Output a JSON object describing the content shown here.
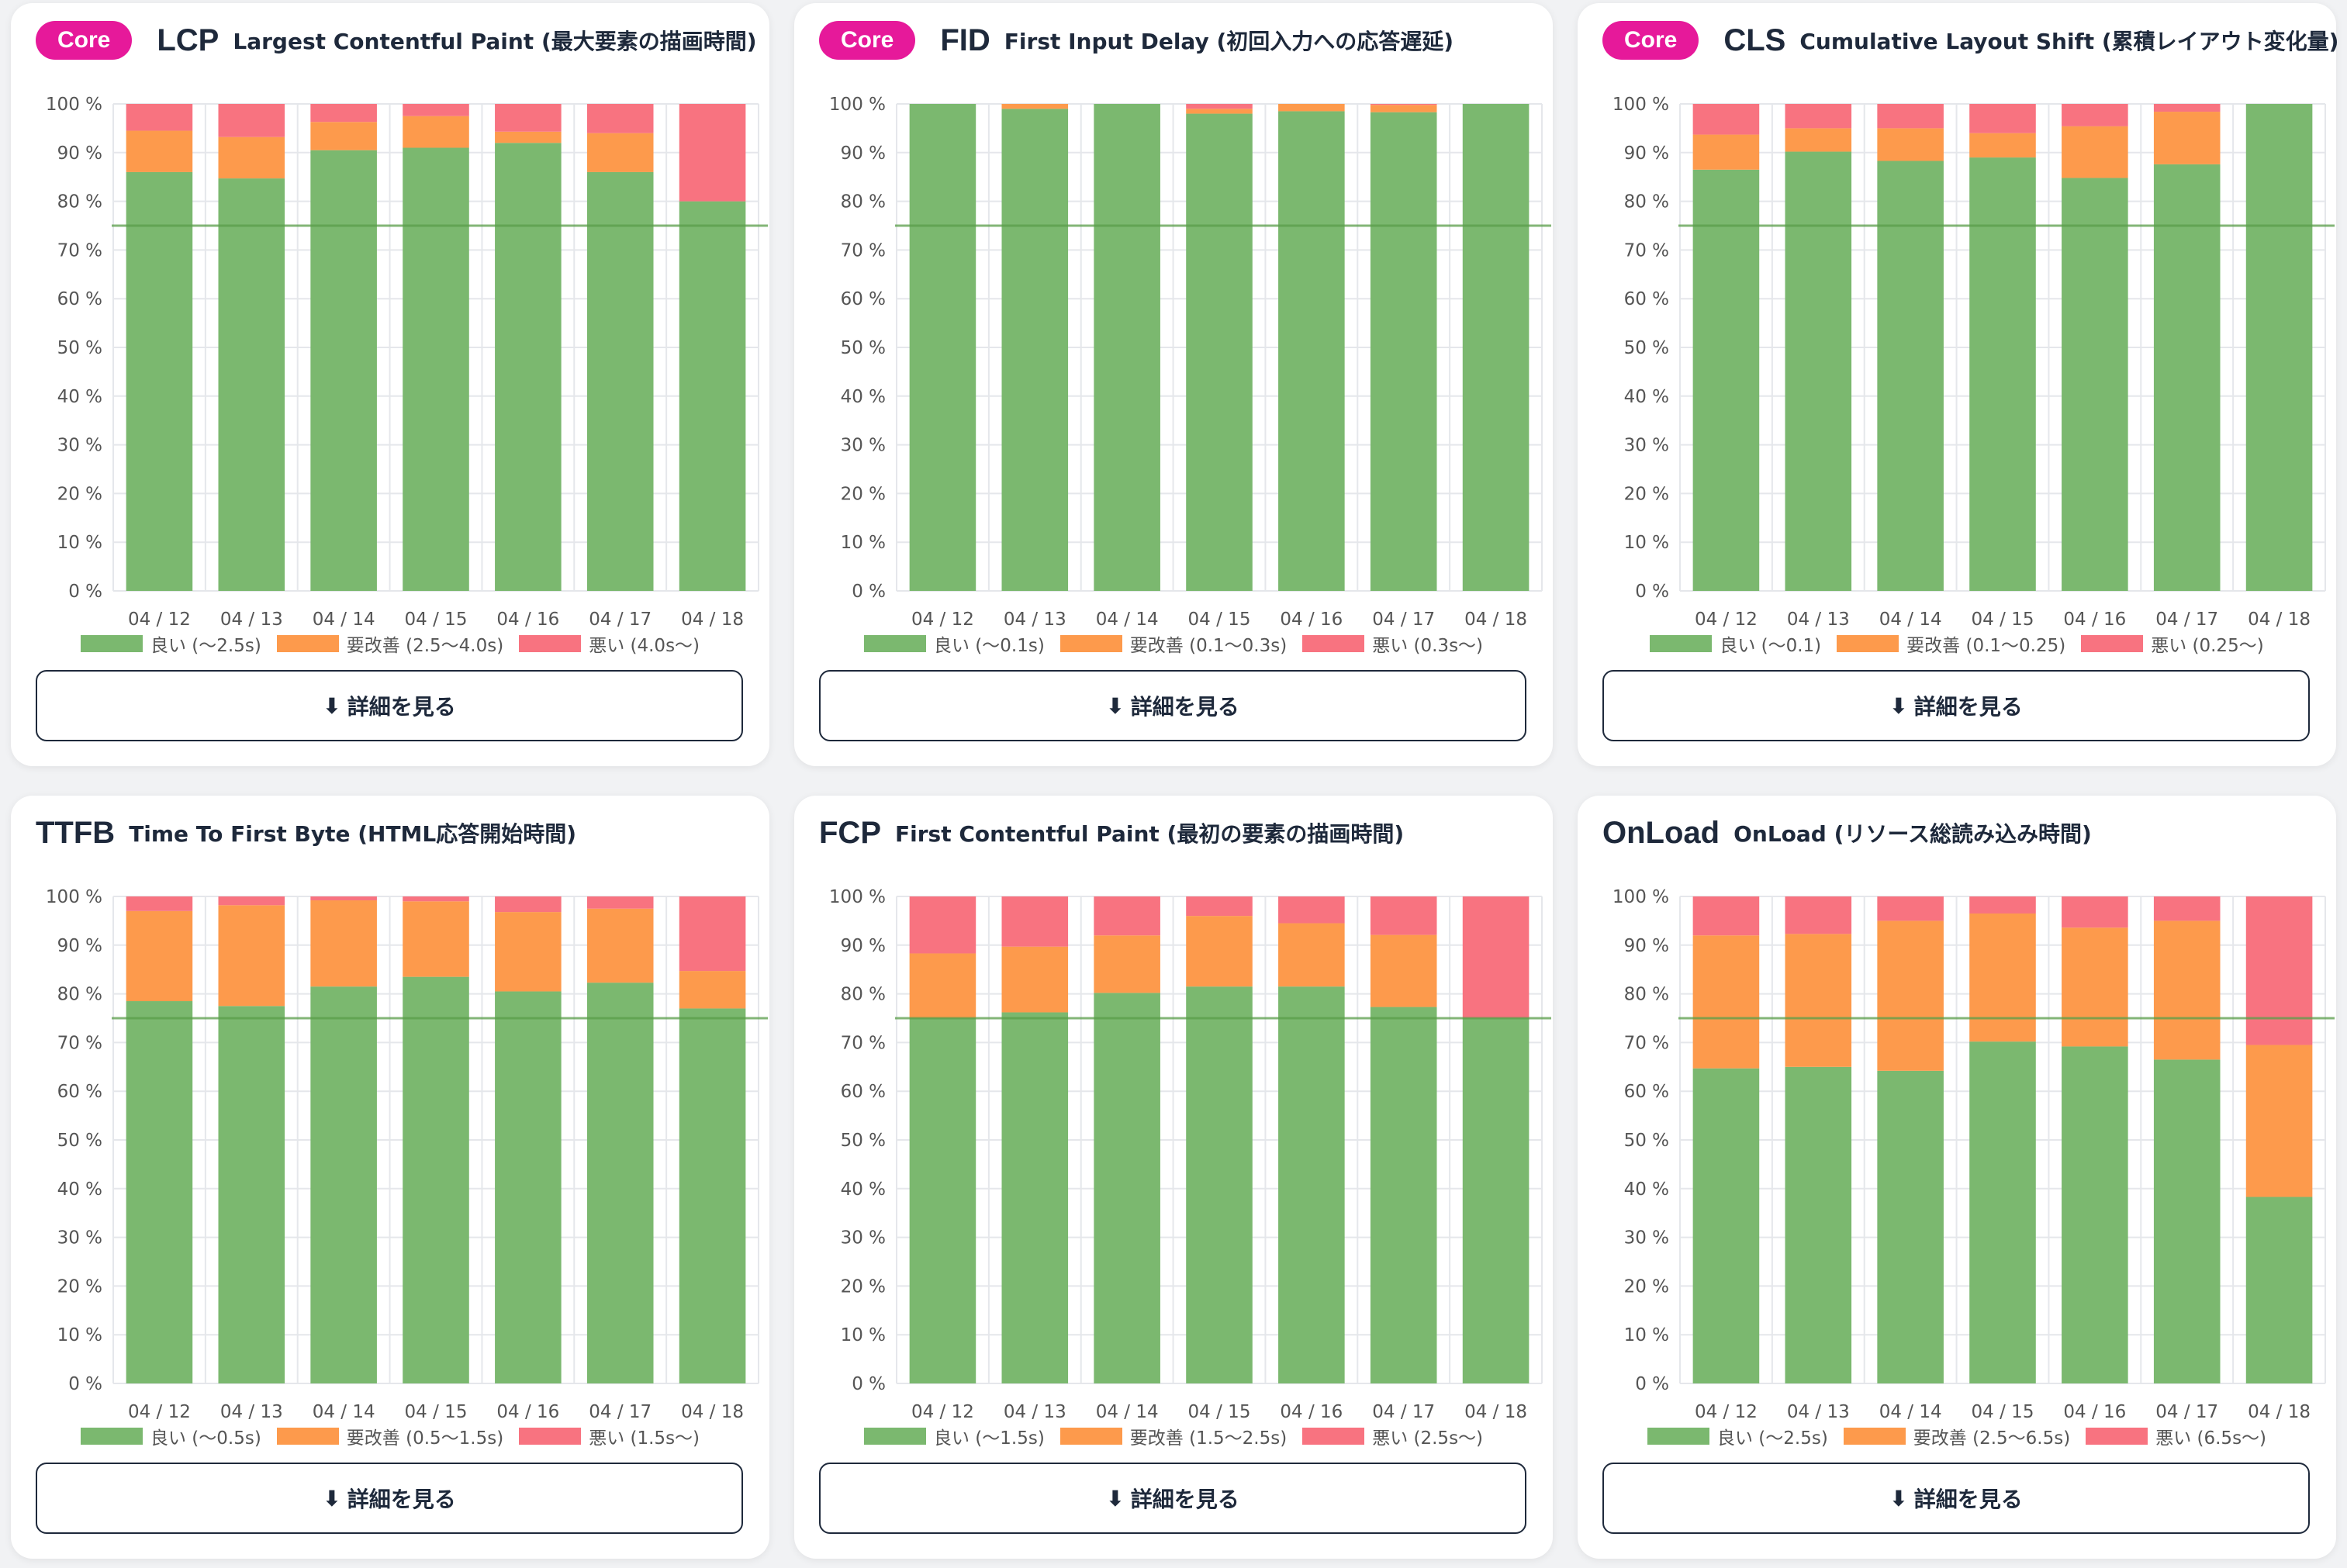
{
  "button_label": "詳細を見る",
  "button_icon": "⬇",
  "colors": {
    "good": "#7bb86f",
    "improve": "#fd9a4c",
    "poor": "#f87380",
    "badge": "#e6199a",
    "threshold": "#5a9e4a"
  },
  "chart_data": [
    {
      "type": "bar",
      "stacked": true,
      "badge": "Core",
      "abbr": "LCP",
      "title": "Largest Contentful Paint (最大要素の描画時間)",
      "categories": [
        "04 / 12",
        "04 / 13",
        "04 / 14",
        "04 / 15",
        "04 / 16",
        "04 / 17",
        "04 / 18"
      ],
      "series": [
        {
          "name": "良い (〜2.5s)",
          "key": "good",
          "values": [
            86,
            84.7,
            90.5,
            91,
            92,
            86,
            80
          ]
        },
        {
          "name": "要改善 (2.5〜4.0s)",
          "key": "improve",
          "values": [
            8.5,
            8.5,
            5.8,
            6.5,
            2.3,
            8,
            0
          ]
        },
        {
          "name": "悪い (4.0s〜)",
          "key": "poor",
          "values": [
            5.5,
            6.8,
            3.7,
            2.5,
            5.7,
            6,
            20
          ]
        }
      ],
      "yticks": [
        "0 %",
        "10 %",
        "20 %",
        "30 %",
        "40 %",
        "50 %",
        "60 %",
        "70 %",
        "80 %",
        "90 %",
        "100 %"
      ],
      "ylim": [
        0,
        100
      ],
      "threshold": 75
    },
    {
      "type": "bar",
      "stacked": true,
      "badge": "Core",
      "abbr": "FID",
      "title": "First Input Delay (初回入力への応答遅延)",
      "categories": [
        "04 / 12",
        "04 / 13",
        "04 / 14",
        "04 / 15",
        "04 / 16",
        "04 / 17",
        "04 / 18"
      ],
      "series": [
        {
          "name": "良い (〜0.1s)",
          "key": "good",
          "values": [
            100,
            99,
            100,
            98,
            98.5,
            98.3,
            100
          ]
        },
        {
          "name": "要改善 (0.1〜0.3s)",
          "key": "improve",
          "values": [
            0,
            1,
            0,
            1,
            1.5,
            1.5,
            0
          ]
        },
        {
          "name": "悪い (0.3s〜)",
          "key": "poor",
          "values": [
            0,
            0,
            0,
            1,
            0,
            0.2,
            0
          ]
        }
      ],
      "yticks": [
        "0 %",
        "10 %",
        "20 %",
        "30 %",
        "40 %",
        "50 %",
        "60 %",
        "70 %",
        "80 %",
        "90 %",
        "100 %"
      ],
      "ylim": [
        0,
        100
      ],
      "threshold": 75
    },
    {
      "type": "bar",
      "stacked": true,
      "badge": "Core",
      "abbr": "CLS",
      "title": "Cumulative Layout Shift (累積レイアウト変化量)",
      "categories": [
        "04 / 12",
        "04 / 13",
        "04 / 14",
        "04 / 15",
        "04 / 16",
        "04 / 17",
        "04 / 18"
      ],
      "series": [
        {
          "name": "良い (〜0.1)",
          "key": "good",
          "values": [
            86.5,
            90.2,
            88.3,
            89,
            84.8,
            87.6,
            100
          ]
        },
        {
          "name": "要改善 (0.1〜0.25)",
          "key": "improve",
          "values": [
            7.2,
            4.8,
            6.7,
            5,
            10.6,
            10.8,
            0
          ]
        },
        {
          "name": "悪い (0.25〜)",
          "key": "poor",
          "values": [
            6.3,
            5,
            5,
            6,
            4.6,
            1.6,
            0
          ]
        }
      ],
      "yticks": [
        "0 %",
        "10 %",
        "20 %",
        "30 %",
        "40 %",
        "50 %",
        "60 %",
        "70 %",
        "80 %",
        "90 %",
        "100 %"
      ],
      "ylim": [
        0,
        100
      ],
      "threshold": 75
    },
    {
      "type": "bar",
      "stacked": true,
      "badge": "",
      "abbr": "TTFB",
      "title": "Time To First Byte (HTML応答開始時間)",
      "categories": [
        "04 / 12",
        "04 / 13",
        "04 / 14",
        "04 / 15",
        "04 / 16",
        "04 / 17",
        "04 / 18"
      ],
      "series": [
        {
          "name": "良い (〜0.5s)",
          "key": "good",
          "values": [
            78.5,
            77.5,
            81.5,
            83.5,
            80.5,
            82.3,
            77
          ]
        },
        {
          "name": "要改善 (0.5〜1.5s)",
          "key": "improve",
          "values": [
            18.5,
            20.7,
            17.7,
            15.5,
            16.3,
            15.2,
            7.7
          ]
        },
        {
          "name": "悪い (1.5s〜)",
          "key": "poor",
          "values": [
            3,
            1.8,
            0.8,
            1,
            3.2,
            2.5,
            15.3
          ]
        }
      ],
      "yticks": [
        "0 %",
        "10 %",
        "20 %",
        "30 %",
        "40 %",
        "50 %",
        "60 %",
        "70 %",
        "80 %",
        "90 %",
        "100 %"
      ],
      "ylim": [
        0,
        100
      ],
      "threshold": 75
    },
    {
      "type": "bar",
      "stacked": true,
      "badge": "",
      "abbr": "FCP",
      "title": "First Contentful Paint (最初の要素の描画時間)",
      "categories": [
        "04 / 12",
        "04 / 13",
        "04 / 14",
        "04 / 15",
        "04 / 16",
        "04 / 17",
        "04 / 18"
      ],
      "series": [
        {
          "name": "良い (〜1.5s)",
          "key": "good",
          "values": [
            75,
            76.2,
            80.2,
            81.5,
            81.5,
            77.3,
            75
          ]
        },
        {
          "name": "要改善 (1.5〜2.5s)",
          "key": "improve",
          "values": [
            13.3,
            13.5,
            11.8,
            14.5,
            13,
            14.8,
            0
          ]
        },
        {
          "name": "悪い (2.5s〜)",
          "key": "poor",
          "values": [
            11.7,
            10.3,
            8,
            4,
            5.5,
            7.9,
            25
          ]
        }
      ],
      "yticks": [
        "0 %",
        "10 %",
        "20 %",
        "30 %",
        "40 %",
        "50 %",
        "60 %",
        "70 %",
        "80 %",
        "90 %",
        "100 %"
      ],
      "ylim": [
        0,
        100
      ],
      "threshold": 75
    },
    {
      "type": "bar",
      "stacked": true,
      "badge": "",
      "abbr": "OnLoad",
      "title": "OnLoad (リソース総読み込み時間)",
      "categories": [
        "04 / 12",
        "04 / 13",
        "04 / 14",
        "04 / 15",
        "04 / 16",
        "04 / 17",
        "04 / 18"
      ],
      "series": [
        {
          "name": "良い (〜2.5s)",
          "key": "good",
          "values": [
            64.7,
            65,
            64.2,
            70.2,
            69.2,
            66.5,
            38.3
          ]
        },
        {
          "name": "要改善 (2.5〜6.5s)",
          "key": "improve",
          "values": [
            27.3,
            27.3,
            30.8,
            26.3,
            24.4,
            28.5,
            31.2
          ]
        },
        {
          "name": "悪い (6.5s〜)",
          "key": "poor",
          "values": [
            8,
            7.7,
            5,
            3.5,
            6.4,
            5,
            30.5
          ]
        }
      ],
      "yticks": [
        "0 %",
        "10 %",
        "20 %",
        "30 %",
        "40 %",
        "50 %",
        "60 %",
        "70 %",
        "80 %",
        "90 %",
        "100 %"
      ],
      "ylim": [
        0,
        100
      ],
      "threshold": 75
    }
  ]
}
